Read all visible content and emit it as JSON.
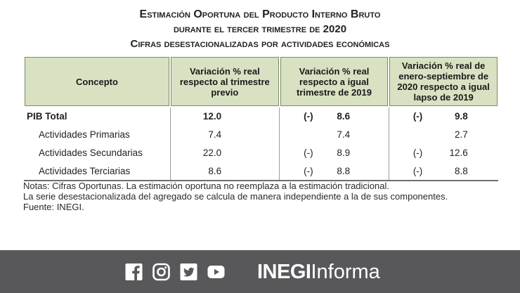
{
  "title": {
    "line1": "Estimación Oportuna del Producto Interno Bruto",
    "line2": "durante el tercer trimestre de 2020",
    "line3": "Cifras desestacionalizadas por actividades económicas"
  },
  "table": {
    "headers": [
      "Concepto",
      "Variación % real respecto al trimestre previo",
      "Variación % real respecto a igual trimestre de 2019",
      "Variación % real de enero-septiembre de 2020 respecto a igual lapso de 2019"
    ],
    "rows": [
      {
        "concept": "PIB Total",
        "q": "12.0",
        "y_neg": "(-)",
        "y": "8.6",
        "ys_neg": "(-)",
        "ys": "9.8"
      },
      {
        "concept": "Actividades Primarias",
        "q": "7.4",
        "y_neg": "",
        "y": "7.4",
        "ys_neg": "",
        "ys": "2.7"
      },
      {
        "concept": "Actividades Secundarias",
        "q": "22.0",
        "y_neg": "(-)",
        "y": "8.9",
        "ys_neg": "(-)",
        "ys": "12.6"
      },
      {
        "concept": "Actividades Terciarias",
        "q": "8.6",
        "y_neg": "(-)",
        "y": "8.8",
        "ys_neg": "(-)",
        "ys": "8.8"
      }
    ]
  },
  "notes": {
    "line1": "Notas: Cifras Oportunas. La estimación oportuna no reemplaza a la estimación tradicional.",
    "line2": "La serie desestacionalizada del agregado se calcula de manera independiente a la de sus componentes.",
    "line3": "Fuente: INEGI."
  },
  "footer": {
    "brand_bold": "INEGI",
    "brand_light": "Informa",
    "icons": [
      "facebook-icon",
      "instagram-icon",
      "twitter-icon",
      "youtube-icon"
    ],
    "bg_color": "#58585a"
  }
}
